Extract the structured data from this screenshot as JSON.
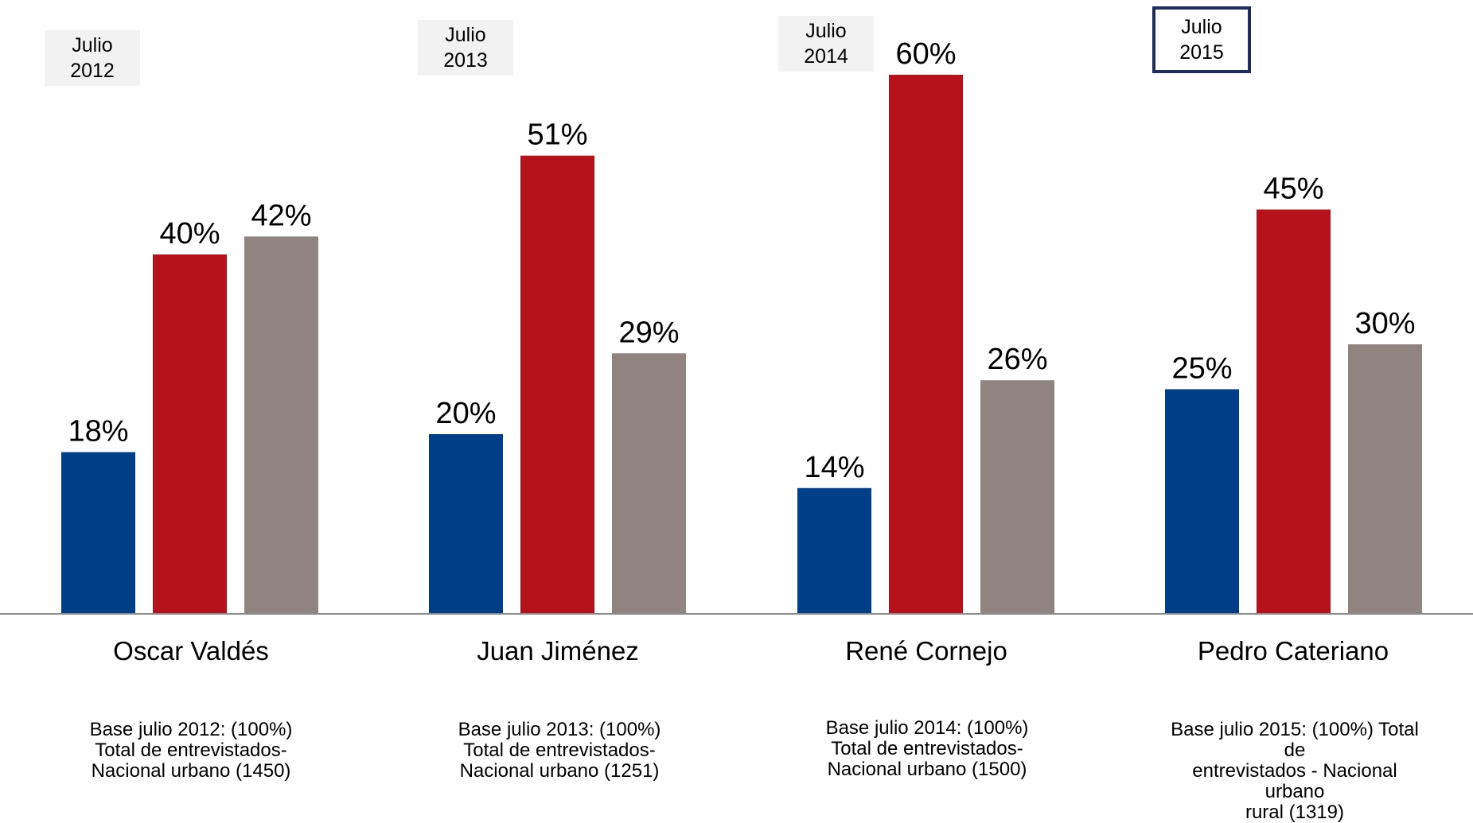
{
  "chart_data": {
    "type": "bar",
    "ylim": [
      0,
      62
    ],
    "series_colors": [
      "#003f87",
      "#b5121b",
      "#8f8480"
    ],
    "grid": false,
    "groups": [
      {
        "category": "Oscar Valdés",
        "period": "Julio\n2012",
        "highlight": false,
        "values": [
          18,
          40,
          42
        ],
        "labels": [
          "18%",
          "40%",
          "42%"
        ],
        "base": "Base julio  2012: (100%)\nTotal de entrevistados-\nNacional urbano (1450)"
      },
      {
        "category": "Juan Jiménez",
        "period": "Julio\n2013",
        "highlight": false,
        "values": [
          20,
          51,
          29
        ],
        "labels": [
          "20%",
          "51%",
          "29%"
        ],
        "base": "Base julio  2013: (100%)\nTotal de entrevistados-\nNacional urbano (1251)"
      },
      {
        "category": "René Cornejo",
        "period": "Julio\n2014",
        "highlight": false,
        "values": [
          14,
          60,
          26
        ],
        "labels": [
          "14%",
          "60%",
          "26%"
        ],
        "base": "Base julio  2014: (100%)\nTotal de entrevistados-\nNacional urbano (1500)"
      },
      {
        "category": "Pedro Cateriano",
        "period": "Julio\n2015",
        "highlight": true,
        "values": [
          25,
          45,
          30
        ],
        "labels": [
          "25%",
          "45%",
          "30%"
        ],
        "base": "Base julio 2015: (100%) Total de\nentrevistados - Nacional urbano\nrural (1319)"
      }
    ]
  }
}
